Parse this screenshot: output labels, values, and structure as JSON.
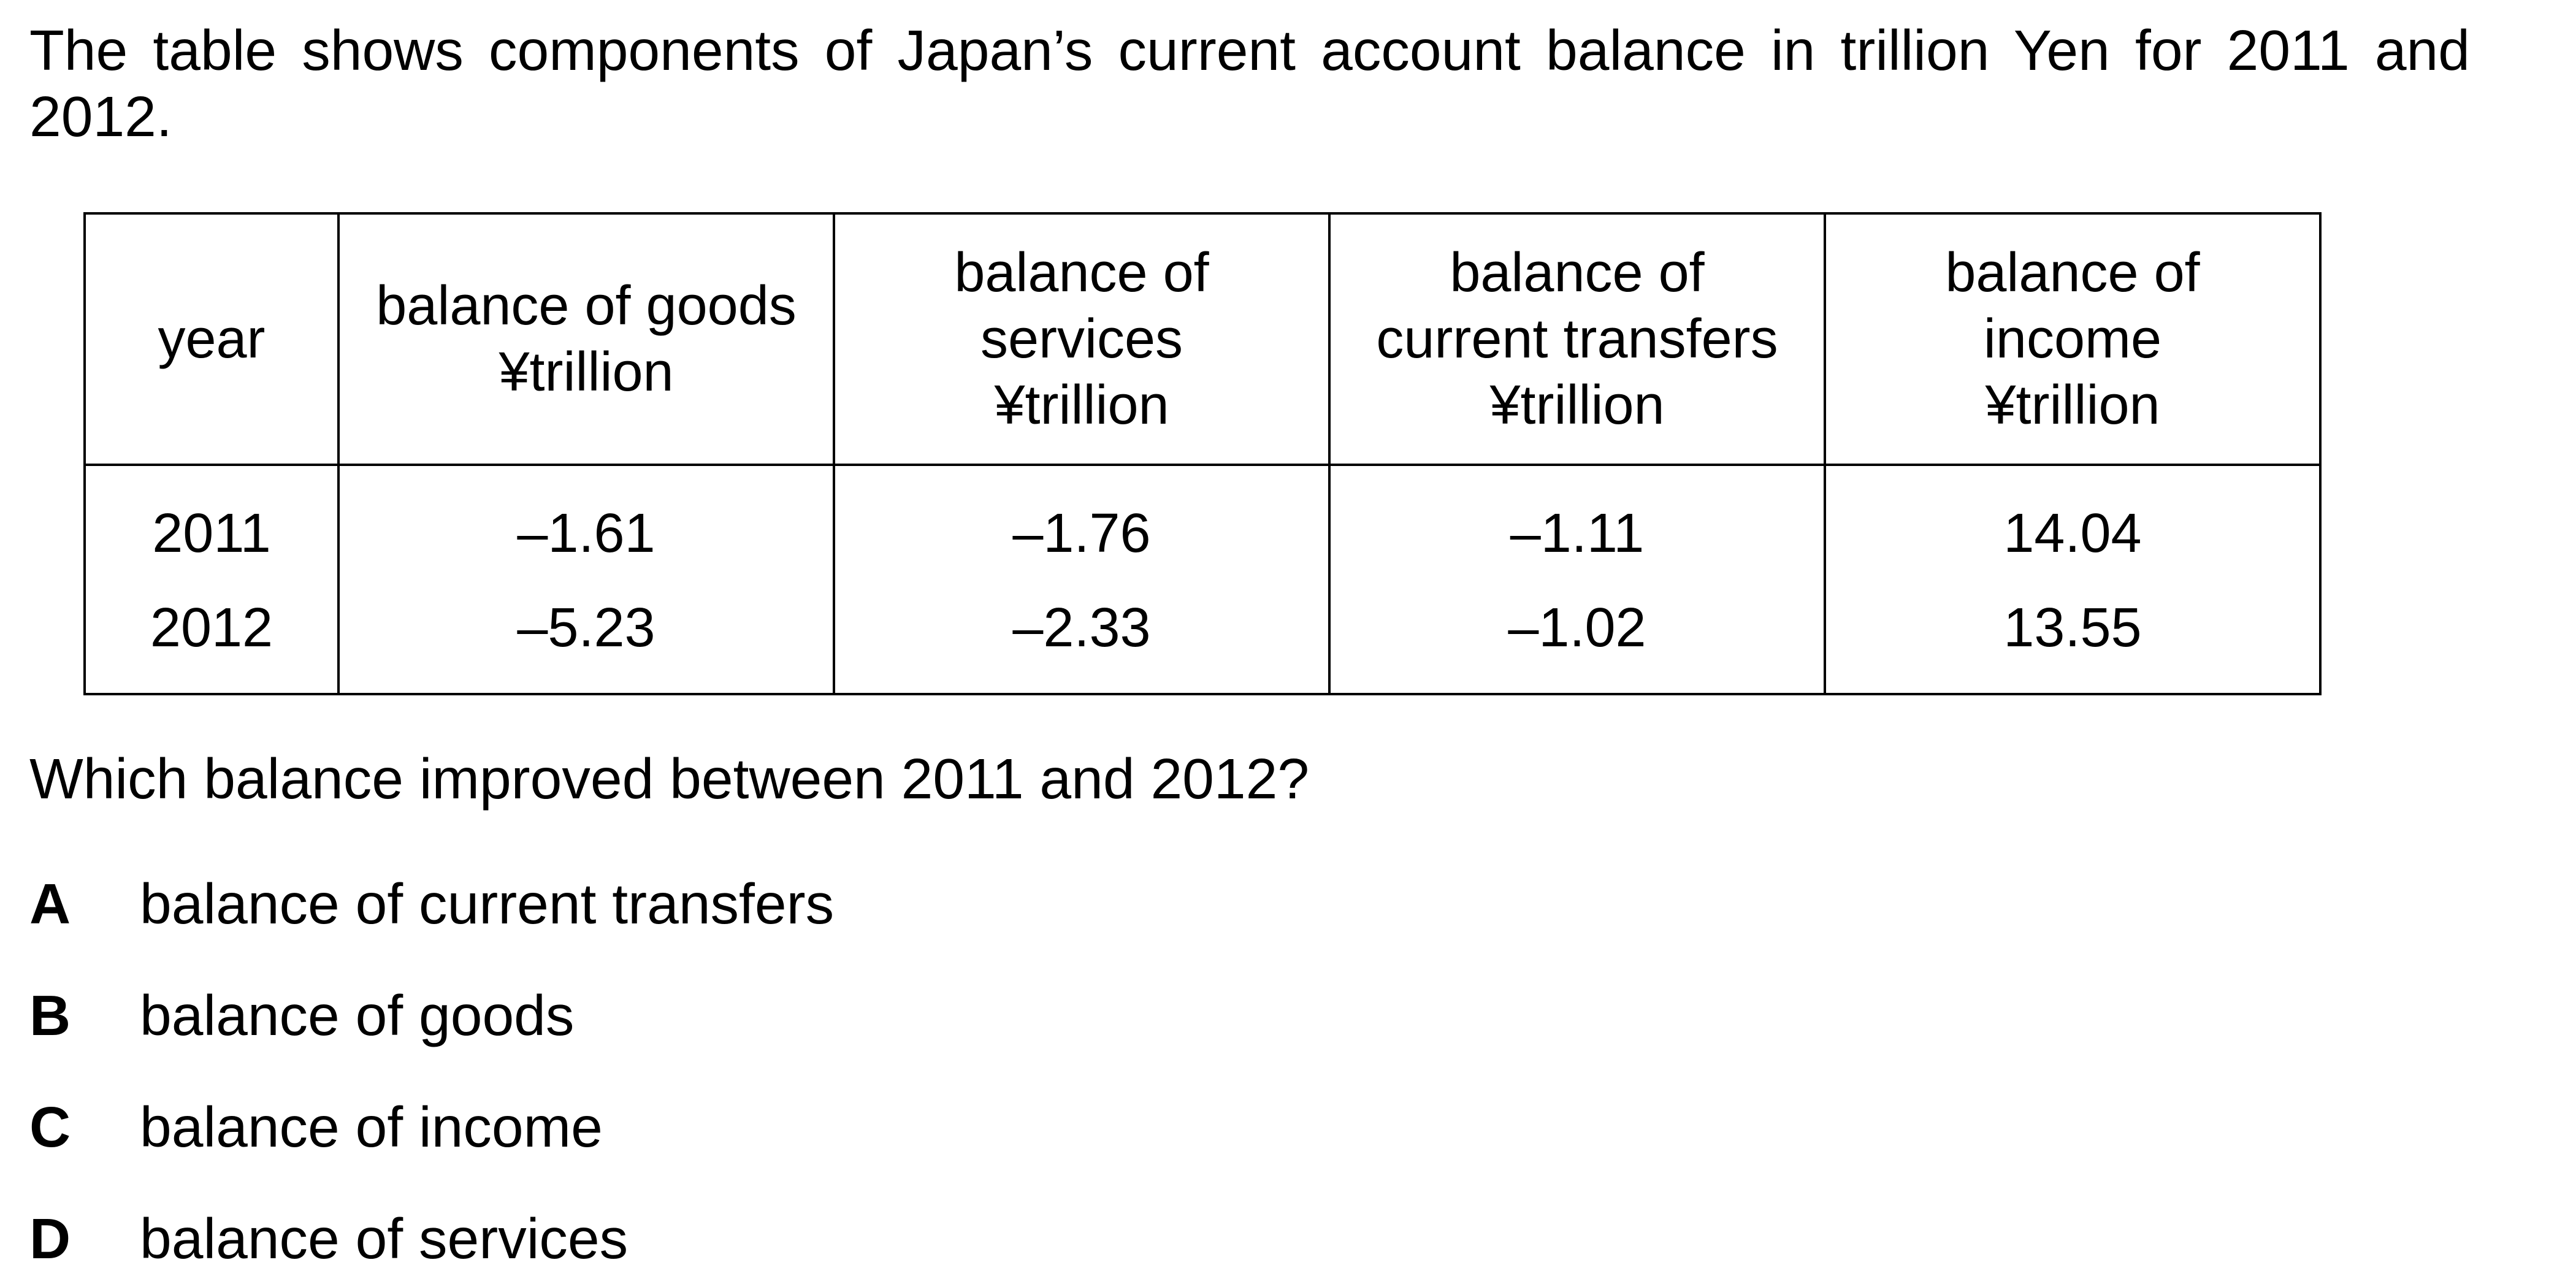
{
  "intro_text": "The table shows components of Japan’s current account balance in trillion Yen for 2011 and 2012.",
  "table": {
    "headers": [
      [
        "year"
      ],
      [
        "balance of goods",
        "¥trillion"
      ],
      [
        "balance of",
        "services",
        "¥trillion"
      ],
      [
        "balance of",
        "current transfers",
        "¥trillion"
      ],
      [
        "balance of",
        "income",
        "¥trillion"
      ]
    ],
    "rows": [
      [
        "2011",
        "–1.61",
        "–1.76",
        "–1.11",
        "14.04"
      ],
      [
        "2012",
        "–5.23",
        "–2.33",
        "–1.02",
        "13.55"
      ]
    ]
  },
  "question": "Which balance improved between 2011 and 2012?",
  "options": [
    {
      "letter": "A",
      "text": "balance of current transfers"
    },
    {
      "letter": "B",
      "text": "balance of goods"
    },
    {
      "letter": "C",
      "text": "balance of income"
    },
    {
      "letter": "D",
      "text": "balance of services"
    }
  ]
}
